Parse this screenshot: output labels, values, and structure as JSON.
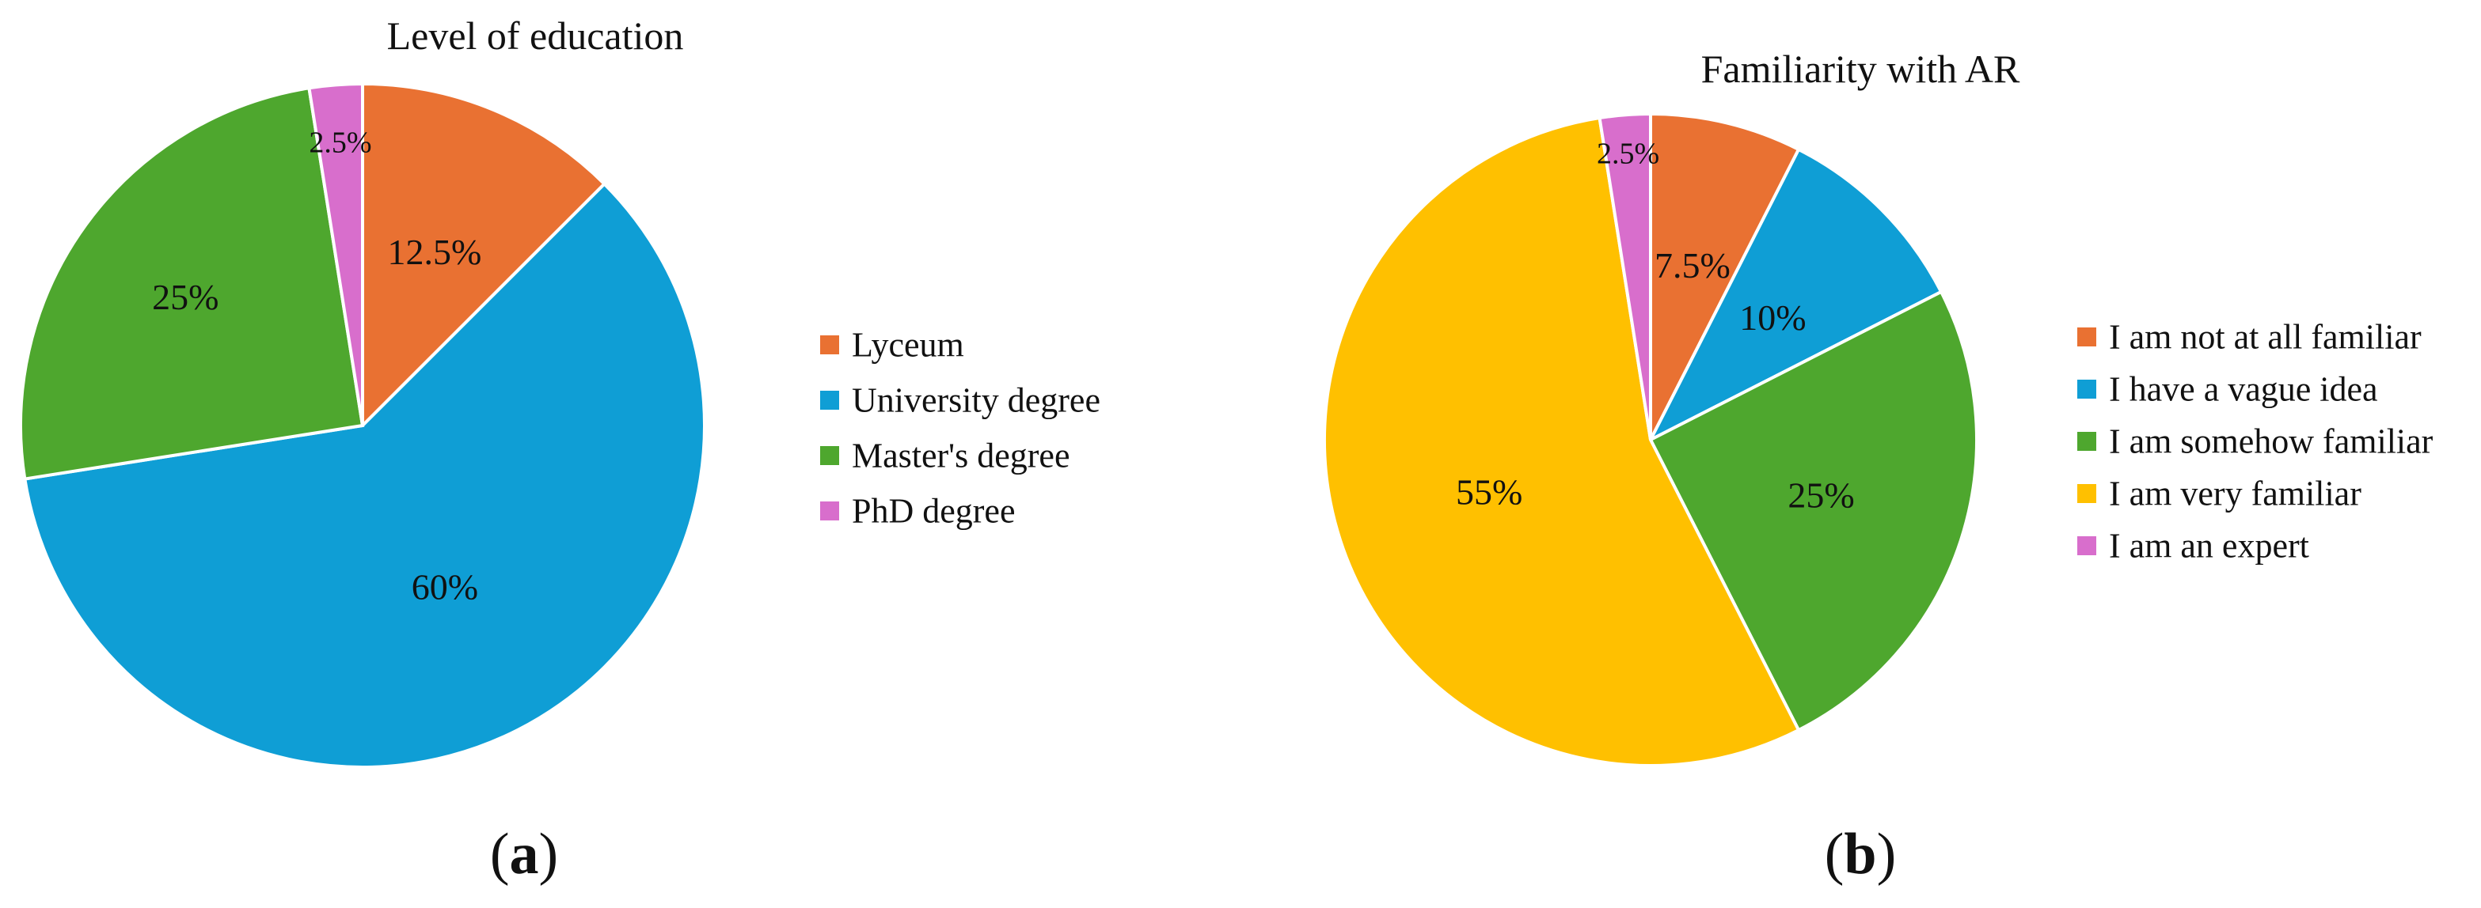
{
  "chart_data": [
    {
      "type": "pie",
      "panel": "(a)",
      "title": "Level of education",
      "categories": [
        "Lyceum",
        "University degree",
        "Master's degree",
        "PhD degree"
      ],
      "values": [
        12.5,
        60,
        25,
        2.5
      ],
      "labels": [
        "12.5%",
        "60%",
        "25%",
        "2.5%"
      ],
      "colors": [
        "#E97132",
        "#0F9ED5",
        "#4EA72E",
        "#D86ECC"
      ],
      "legend_position": "right"
    },
    {
      "type": "pie",
      "panel": "(b)",
      "title": "Familiarity with AR",
      "categories": [
        "I am not at all familiar",
        "I have a vague idea",
        "I am somehow familiar",
        "I am very familiar",
        "I am an expert"
      ],
      "values": [
        7.5,
        10,
        25,
        55,
        2.5
      ],
      "labels": [
        "7.5%",
        "10%",
        "25%",
        "55%",
        "2.5%"
      ],
      "colors": [
        "#E97132",
        "#0F9ED5",
        "#4EA72E",
        "#FFC000",
        "#D86ECC"
      ],
      "legend_position": "right"
    }
  ]
}
